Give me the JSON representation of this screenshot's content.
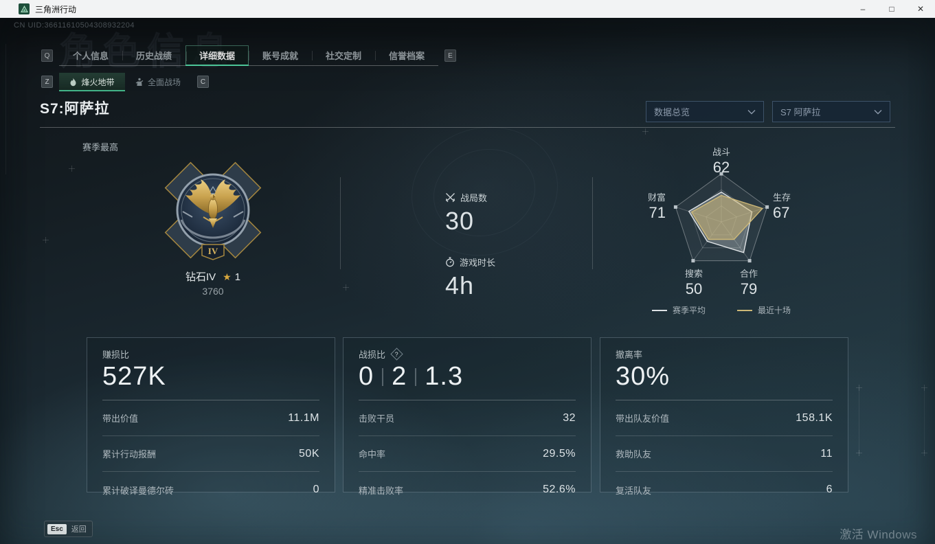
{
  "window": {
    "title": "三角洲行动",
    "minimize": "–",
    "maximize": "□",
    "close": "✕"
  },
  "icons": {
    "star": "★",
    "question": "?"
  },
  "header": {
    "uid": "CN UID:36611610504308932204",
    "ghost": "角色信息"
  },
  "tabs": {
    "prev_key": "Q",
    "next_key": "E",
    "active": "详细数据",
    "items": [
      "个人信息",
      "历史战绩",
      "详细数据",
      "账号成就",
      "社交定制",
      "信誉档案"
    ]
  },
  "subtabs": {
    "prev_key": "Z",
    "next_key": "C",
    "active": "烽火地带",
    "items": [
      "烽火地带",
      "全面战场"
    ]
  },
  "season": {
    "title": "S7:阿萨拉",
    "filters": [
      "数据总览",
      "S7 阿萨拉"
    ],
    "best_label": "赛季最高",
    "rank": {
      "name": "钻石IV",
      "stars": "1",
      "points": "3760",
      "numeral": "IV"
    }
  },
  "summary": {
    "matches_label": "战局数",
    "matches_value": "30",
    "playtime_label": "游戏时长",
    "playtime_value": "4h"
  },
  "chart_data": {
    "type": "radar",
    "categories": [
      "战斗",
      "生存",
      "合作",
      "搜索",
      "财富"
    ],
    "axis_display_values": [
      "62",
      "67",
      "79",
      "50",
      "71"
    ],
    "max": 100,
    "series": [
      {
        "name": "赛季平均",
        "color": "#dfe3e6",
        "values": [
          62,
          67,
          79,
          50,
          71
        ]
      },
      {
        "name": "最近十场",
        "color": "#cdb878",
        "values": [
          55,
          90,
          45,
          45,
          65
        ]
      }
    ],
    "legend_position": "bottom",
    "grid": true
  },
  "cards": [
    {
      "title": "赚损比",
      "hero": "527K",
      "rows": [
        {
          "label": "带出价值",
          "value": "11.1M"
        },
        {
          "label": "累计行动报酬",
          "value": "50K"
        },
        {
          "label": "累计破译曼德尔砖",
          "value": "0"
        }
      ]
    },
    {
      "title": "战损比",
      "hero_parts": [
        "0",
        "2",
        "1.3"
      ],
      "rows": [
        {
          "label": "击败干员",
          "value": "32"
        },
        {
          "label": "命中率",
          "value": "29.5%"
        },
        {
          "label": "精准击败率",
          "value": "52.6%"
        }
      ]
    },
    {
      "title": "撤离率",
      "hero": "30%",
      "rows": [
        {
          "label": "带出队友价值",
          "value": "158.1K"
        },
        {
          "label": "救助队友",
          "value": "11"
        },
        {
          "label": "复活队友",
          "value": "6"
        }
      ]
    }
  ],
  "footer": {
    "esc_key": "Esc",
    "back_label": "返回",
    "watermark": "激活 Windows"
  }
}
